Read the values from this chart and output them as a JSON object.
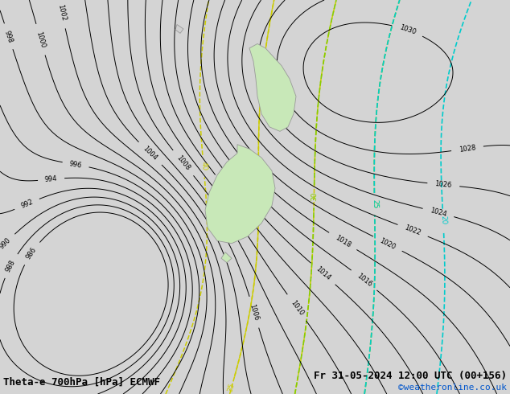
{
  "title_left": "Theta-e 700hPa [hPa] ECMWF",
  "title_right": "Fr 31-05-2024 12:00 UTC (00+156)",
  "copyright": "©weatheronline.co.uk",
  "background_color": "#d4d4d4",
  "map_bg_color": "#d4d4d4",
  "nz_land_color": "#c8e8b8",
  "nz_edge_color": "#999999",
  "figsize": [
    6.34,
    4.9
  ],
  "dpi": 100,
  "title_fontsize": 9,
  "copyright_fontsize": 8,
  "black_contour_color": "#000000",
  "yellow_contour_color": "#cccc00",
  "green_contour_color": "#88cc00",
  "cyan_contour_color": "#00cccc",
  "contour_linewidth": 0.7
}
